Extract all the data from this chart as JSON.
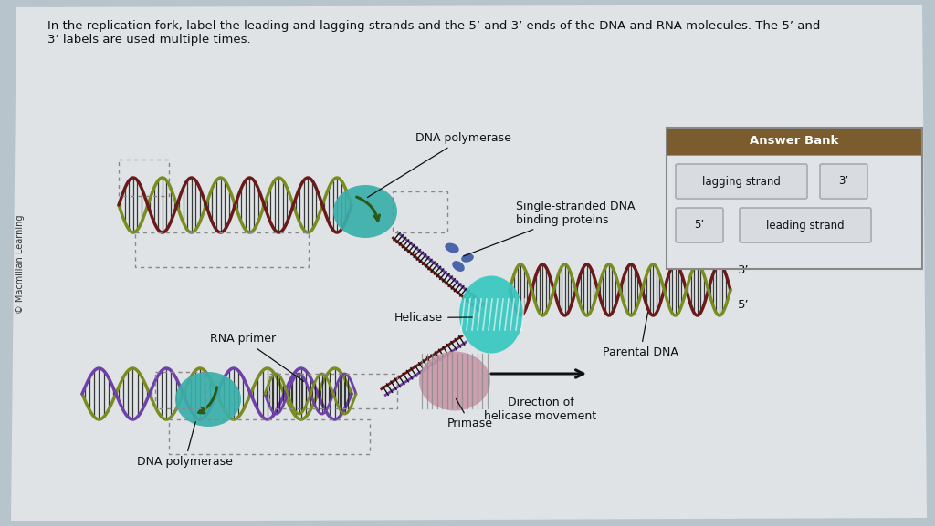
{
  "bg_color": "#b8c4cc",
  "paper_color": "#e8eaec",
  "title_text": "In the replication fork, label the leading and lagging strands and the 5’ and 3’ ends of the DNA and RNA molecules. The 5’ and\n3’ labels are used multiple times.",
  "copyright_text": "© Macmillan Learning",
  "answer_bank_title": "Answer Bank",
  "answer_bank_bg": "#7a5c2e",
  "labels": {
    "dna_polymerase_top": "DNA polymerase",
    "single_stranded": "Single-stranded DNA\nbinding proteins",
    "helicase": "Helicase",
    "rna_primer": "RNA primer",
    "primase": "Primase",
    "parental_dna": "Parental DNA",
    "direction": "Direction of\nhelicase movement",
    "dna_polymerase_bottom": "DNA polymerase",
    "three_prime": "3’",
    "five_prime": "5’"
  },
  "colors": {
    "dna_olive": "#7a8c20",
    "dna_dark_red": "#6b1a1a",
    "dna_purple": "#7040aa",
    "helicase_teal": "#38c8c0",
    "dna_pol_teal": "#3aafaa",
    "primase_mauve": "#c898a8",
    "ssb_blue": "#3050a0",
    "crosshatch_dark": "#2a2a2a",
    "strand_cross": "#555544",
    "label_color": "#111111"
  }
}
